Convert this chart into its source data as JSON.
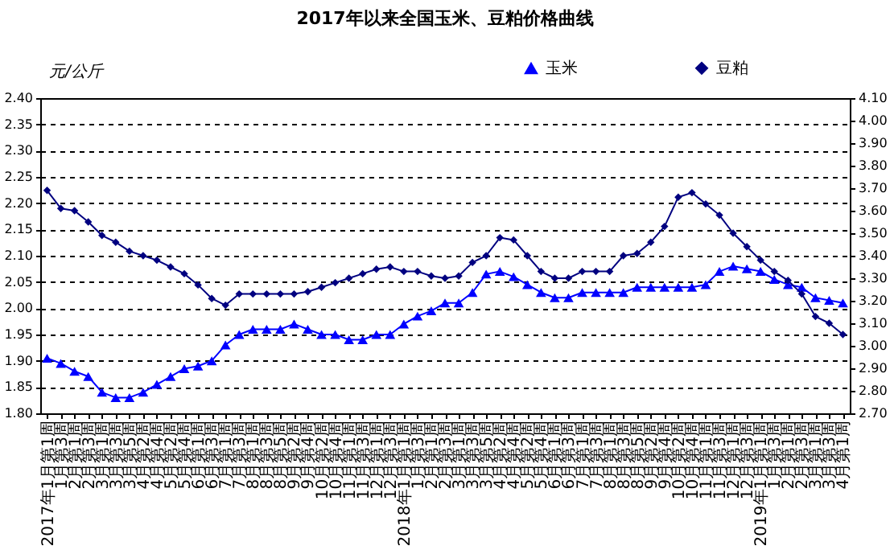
{
  "chart_data": {
    "type": "line",
    "title": "2017年以来全国玉米、豆粕价格曲线",
    "ylabel": "元/公斤",
    "categories": [
      "2017年1月第1周",
      "1月第3周",
      "2月第1周",
      "2月第3周",
      "3月第1周",
      "3月第3周",
      "3月第5周",
      "4月第2周",
      "4月第4周",
      "5月第2周",
      "5月第4周",
      "6月第1周",
      "6月第3周",
      "7月第1周",
      "7月第3周",
      "8月第1周",
      "8月第3周",
      "8月第5周",
      "9月第2周",
      "9月第4周",
      "10月第2周",
      "10月第4周",
      "11月第1周",
      "11月第3周",
      "12月第1周",
      "12月第3周",
      "2018年1月第1周",
      "1月第3周",
      "2月第1周",
      "2月第3周",
      "3月第1周",
      "3月第3周",
      "3月第5周",
      "4月第2周",
      "4月第4周",
      "5月第2周",
      "5月第4周",
      "6月第1周",
      "6月第3周",
      "7月第1周",
      "7月第3周",
      "8月第1周",
      "8月第3周",
      "8月第5周",
      "9月第2周",
      "9月第4周",
      "10月第2周",
      "10月第4周",
      "11月第1周",
      "11月第3周",
      "12月第1周",
      "12月第3周",
      "2019年1月第1周",
      "1月第3周",
      "2月第1周",
      "2月第3周",
      "3月第1周",
      "3月第3周",
      "4月第1周"
    ],
    "series": [
      {
        "name": "玉米",
        "color": "#0000ff",
        "marker": "triangle",
        "values": [
          1.905,
          1.895,
          1.88,
          1.87,
          1.84,
          1.83,
          1.83,
          1.84,
          1.855,
          1.87,
          1.885,
          1.89,
          1.9,
          1.93,
          1.95,
          1.96,
          1.96,
          1.96,
          1.97,
          1.96,
          1.95,
          1.95,
          1.94,
          1.94,
          1.95,
          1.95,
          1.97,
          1.985,
          1.995,
          2.01,
          2.01,
          2.03,
          2.065,
          2.07,
          2.06,
          2.045,
          2.03,
          2.02,
          2.02,
          2.03,
          2.03,
          2.03,
          2.03,
          2.04,
          2.04,
          2.04,
          2.04,
          2.04,
          2.045,
          2.07,
          2.08,
          2.075,
          2.07,
          2.055,
          2.045,
          2.04,
          2.02,
          2.015,
          2.01
        ]
      },
      {
        "name": "豆粕",
        "color": "#000080",
        "marker": "diamond",
        "axis": "y2",
        "values": [
          3.69,
          3.61,
          3.6,
          3.55,
          3.49,
          3.46,
          3.42,
          3.4,
          3.38,
          3.35,
          3.32,
          3.27,
          3.21,
          3.18,
          3.23,
          3.23,
          3.23,
          3.23,
          3.23,
          3.24,
          3.26,
          3.28,
          3.3,
          3.32,
          3.34,
          3.35,
          3.33,
          3.33,
          3.31,
          3.3,
          3.31,
          3.37,
          3.4,
          3.48,
          3.47,
          3.4,
          3.33,
          3.3,
          3.3,
          3.33,
          3.33,
          3.33,
          3.4,
          3.41,
          3.46,
          3.53,
          3.66,
          3.68,
          3.63,
          3.58,
          3.5,
          3.44,
          3.38,
          3.33,
          3.29,
          3.23,
          3.13,
          3.1,
          3.05
        ]
      }
    ],
    "ylim": [
      1.8,
      2.4
    ],
    "yticks": [
      {
        "value": 1.8,
        "label": "1.80"
      },
      {
        "value": 1.85,
        "label": "1.85"
      },
      {
        "value": 1.9,
        "label": "1.90"
      },
      {
        "value": 1.95,
        "label": "1.95"
      },
      {
        "value": 2.0,
        "label": "2.00"
      },
      {
        "value": 2.05,
        "label": "2.05"
      },
      {
        "value": 2.1,
        "label": "2.10"
      },
      {
        "value": 2.15,
        "label": "2.15"
      },
      {
        "value": 2.2,
        "label": "2.20"
      },
      {
        "value": 2.25,
        "label": "2.25"
      },
      {
        "value": 2.3,
        "label": "2.30"
      },
      {
        "value": 2.35,
        "label": "2.35"
      },
      {
        "value": 2.4,
        "label": "2.40"
      }
    ],
    "y2lim": [
      2.7,
      4.1
    ],
    "y2ticks": [
      {
        "value": 2.7,
        "label": "2.70"
      },
      {
        "value": 2.8,
        "label": "2.80"
      },
      {
        "value": 2.9,
        "label": "2.90"
      },
      {
        "value": 3.0,
        "label": "3.00"
      },
      {
        "value": 3.1,
        "label": "3.10"
      },
      {
        "value": 3.2,
        "label": "3.20"
      },
      {
        "value": 3.3,
        "label": "3.30"
      },
      {
        "value": 3.4,
        "label": "3.40"
      },
      {
        "value": 3.5,
        "label": "3.50"
      },
      {
        "value": 3.6,
        "label": "3.60"
      },
      {
        "value": 3.7,
        "label": "3.70"
      },
      {
        "value": 3.8,
        "label": "3.80"
      },
      {
        "value": 3.9,
        "label": "3.90"
      },
      {
        "value": 4.0,
        "label": "4.00"
      },
      {
        "value": 4.1,
        "label": "4.10"
      }
    ],
    "grid": "y",
    "legend": "top right"
  }
}
